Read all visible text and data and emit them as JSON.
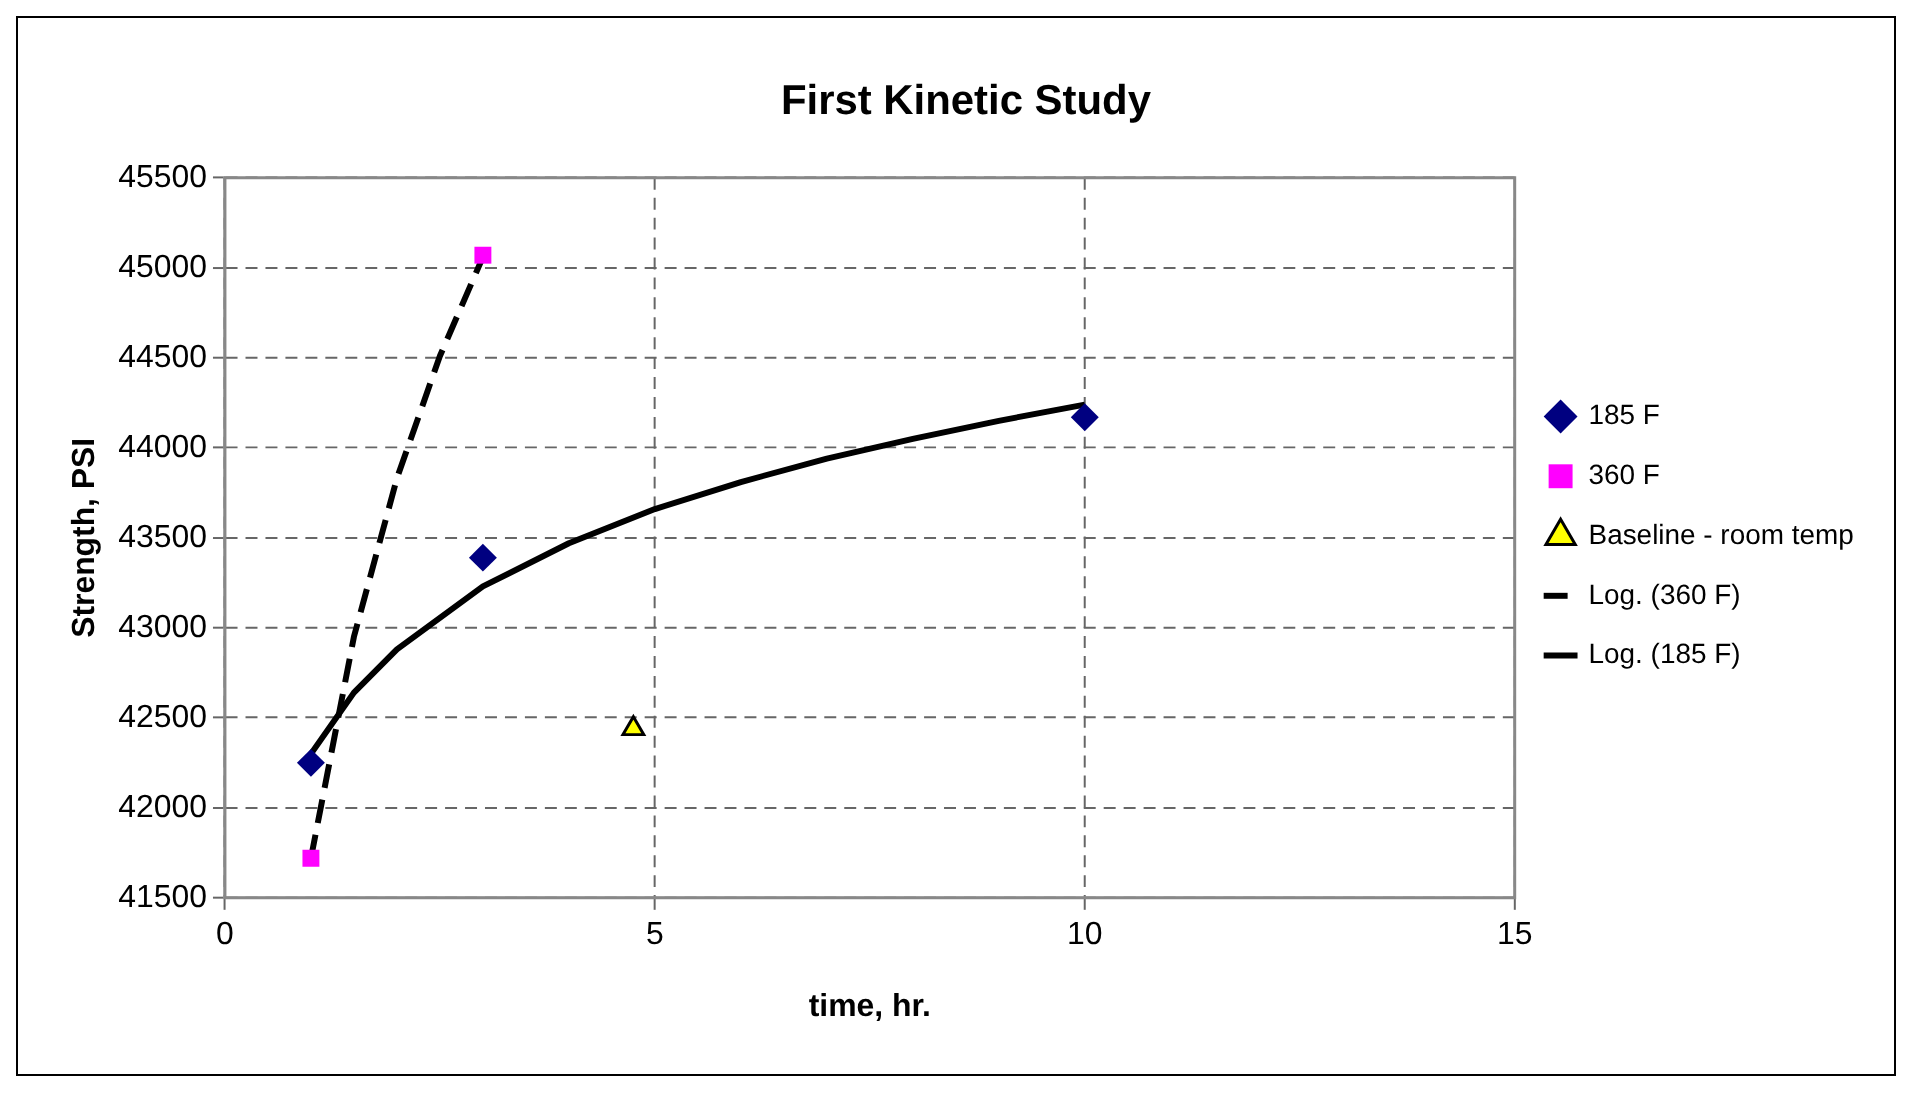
{
  "chart_data": {
    "type": "scatter",
    "title": "First Kinetic Study",
    "xlabel": "time, hr.",
    "ylabel": "Strength, PSI",
    "xlim": [
      0,
      15
    ],
    "xticks": [
      0,
      5,
      10,
      15
    ],
    "ylim": [
      41500,
      45500
    ],
    "yticks": [
      41500,
      42000,
      42500,
      43000,
      43500,
      44000,
      44500,
      45000,
      45500
    ],
    "grid": true,
    "legend": "right",
    "series": [
      {
        "name": "185 F",
        "color": "#000080",
        "marker": "diamond",
        "x": [
          1,
          3,
          10
        ],
        "values": [
          42250,
          43390,
          44170
        ]
      },
      {
        "name": "360 F",
        "color": "#ff00ff",
        "marker": "square",
        "x": [
          1,
          3
        ],
        "values": [
          41720,
          45070
        ]
      },
      {
        "name": "Baseline - room temp",
        "color": "#ffff00",
        "marker": "triangle",
        "x": [
          4.75
        ],
        "values": [
          42440
        ]
      },
      {
        "name": "Log. (360 F)",
        "type": "line",
        "color": "#000000",
        "marker": "none",
        "line_style": "dashed",
        "x": [
          1,
          1.5,
          2,
          2.5,
          3
        ],
        "values": [
          41720,
          42950,
          43830,
          44510,
          45060
        ]
      },
      {
        "name": "Log. (185 F)",
        "type": "line",
        "color": "#000000",
        "marker": "none",
        "line_style": "solid",
        "x": [
          1,
          1.5,
          2,
          3,
          4,
          5,
          6,
          7,
          8,
          9,
          10
        ],
        "values": [
          42300,
          42640,
          42880,
          43230,
          43470,
          43660,
          43810,
          43940,
          44050,
          44150,
          44240
        ]
      }
    ]
  }
}
